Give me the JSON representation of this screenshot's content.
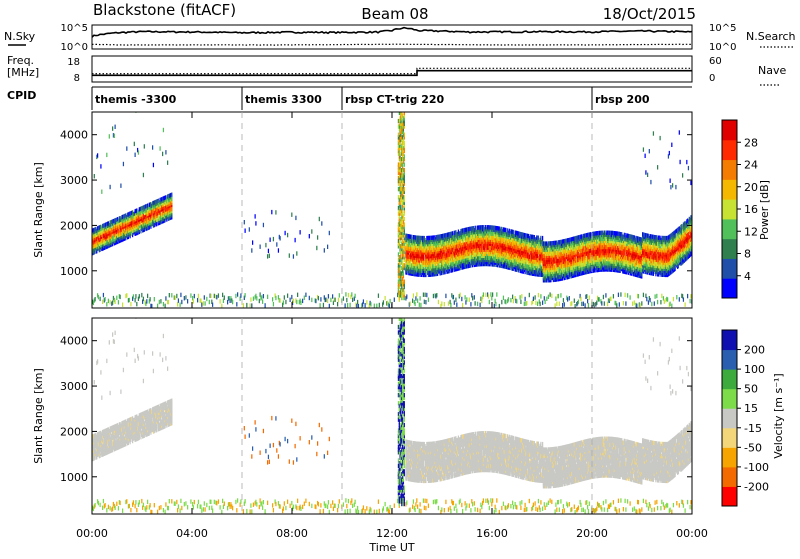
{
  "header": {
    "radar": "Blackstone (fitACF)",
    "beam": "Beam 08",
    "date": "18/Oct/2015"
  },
  "noise_panel": {
    "left_label": "N.Sky",
    "right_label": "N.Search",
    "left_ticks": [
      "10^5",
      "10^0"
    ],
    "right_ticks": [
      "10^5",
      "10^0"
    ]
  },
  "freq_panel": {
    "left_label_1": "Freq.",
    "left_label_2": "[MHz]",
    "right_label": "Nave",
    "left_ticks": [
      "18",
      "8"
    ],
    "right_ticks": [
      "60",
      "0"
    ]
  },
  "cpid_panel": {
    "label": "CPID",
    "segments": [
      {
        "label": "themis -3300",
        "start_hour": 0
      },
      {
        "label": "themis 3300",
        "start_hour": 6
      },
      {
        "label": "rbsp CT-trig 220",
        "start_hour": 10
      },
      {
        "label": "rbsp 200",
        "start_hour": 20
      }
    ]
  },
  "power_panel": {
    "ylabel": "Slant Range [km]",
    "colorbar_label": "Power [dB]",
    "colorbar_ticks": [
      "28",
      "24",
      "20",
      "16",
      "12",
      "8",
      "4"
    ]
  },
  "velocity_panel": {
    "ylabel": "Slant Range [km]",
    "colorbar_label": "Velocity [m s⁻¹]",
    "colorbar_ticks": [
      "200",
      "100",
      "50",
      "15",
      "-15",
      "-50",
      "-100",
      "-200"
    ]
  },
  "xaxis": {
    "label": "Time UT",
    "ticks": [
      "00:00",
      "04:00",
      "08:00",
      "12:00",
      "16:00",
      "20:00",
      "00:00"
    ]
  },
  "range_ticks": [
    "4000",
    "3000",
    "2000",
    "1000"
  ],
  "chart_data": {
    "type": "heatmap",
    "x_range_hours": [
      0,
      24
    ],
    "y_range_km": [
      180,
      4500
    ],
    "range_tick_values": [
      1000,
      2000,
      3000,
      4000
    ],
    "dashed_lines_hours": [
      6,
      10,
      20
    ],
    "power_colors": [
      "#0000ff",
      "#1f4fa8",
      "#2f7f4f",
      "#52c05a",
      "#c8e234",
      "#f5b800",
      "#f47c00",
      "#ff2a00",
      "#e00000"
    ],
    "velocity_colors": [
      "#ff0000",
      "#f36a00",
      "#f5a400",
      "#f3d67a",
      "#c8c8c4",
      "#7cdc4a",
      "#3caa3c",
      "#2a5fb0",
      "#1010b0"
    ],
    "frequency_mhz": [
      {
        "start_hour": 0,
        "end_hour": 13,
        "value": 10.5
      },
      {
        "start_hour": 13,
        "end_hour": 24,
        "value": 12.5
      }
    ],
    "nave": [
      {
        "start_hour": 0,
        "end_hour": 13,
        "value": 19
      },
      {
        "start_hour": 13,
        "end_hour": 24,
        "value": 33
      }
    ],
    "noise_sky": {
      "x": [
        0,
        0.5,
        2,
        4,
        6,
        8,
        10,
        11.5,
        12,
        12.5,
        13,
        15,
        18,
        20,
        22,
        23.5,
        24
      ],
      "y": [
        500,
        2000,
        10000,
        8000,
        5000,
        7000,
        6000,
        8000,
        20000,
        100000,
        20000,
        8000,
        10000,
        9000,
        14000,
        10000,
        8000
      ]
    },
    "noise_search": {
      "x": [
        0,
        1,
        4,
        8,
        12,
        16,
        20,
        24
      ],
      "y": [
        3,
        2,
        2,
        2,
        3,
        2,
        2,
        3
      ]
    }
  }
}
